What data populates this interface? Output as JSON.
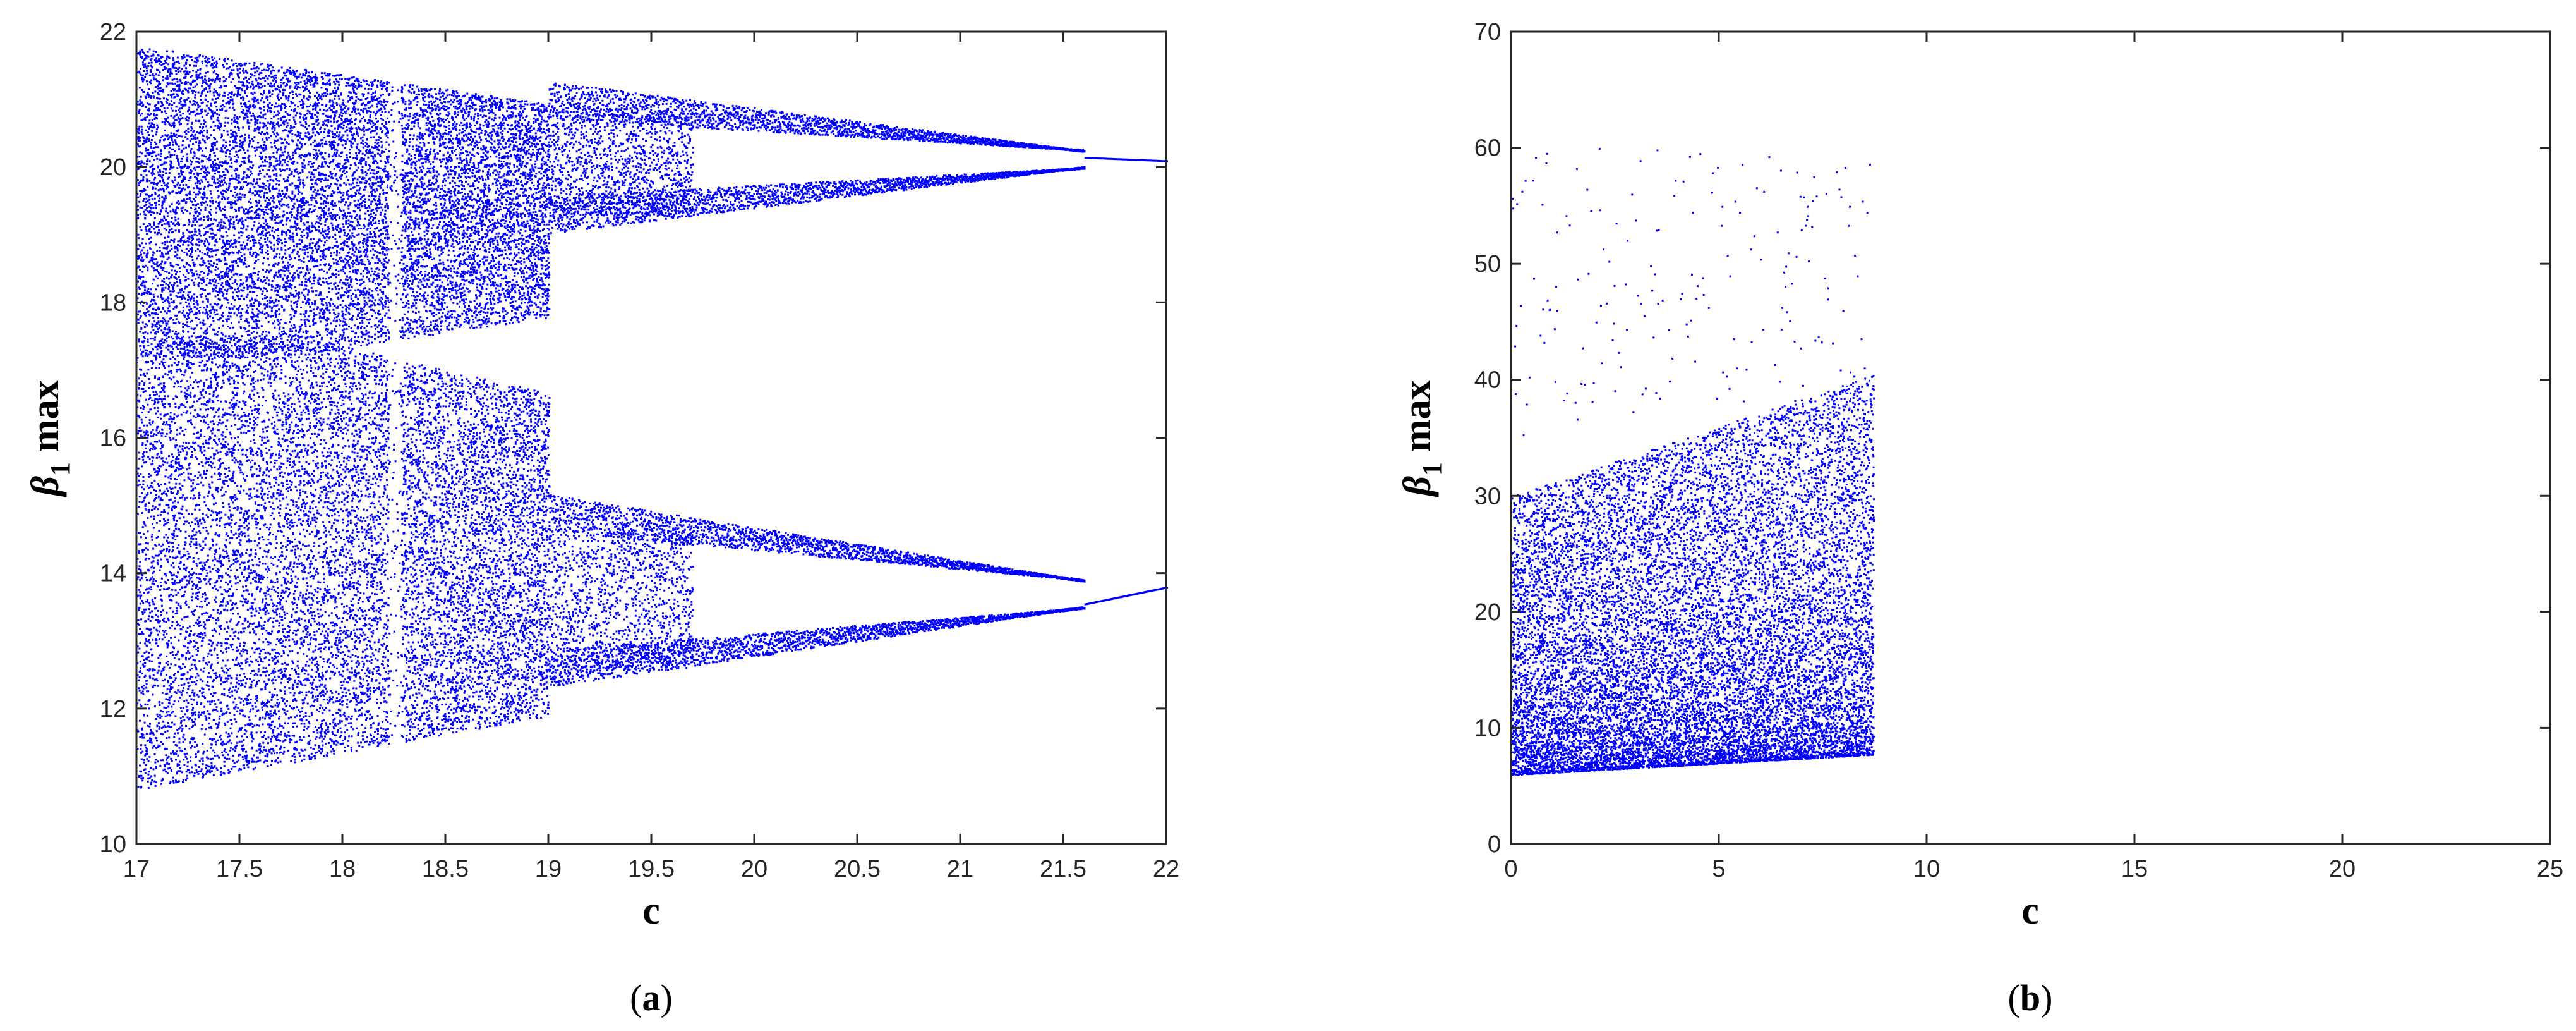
{
  "figure": {
    "panels": [
      {
        "caption_open": "(",
        "caption_letter": "a",
        "caption_close": ")"
      },
      {
        "caption_open": "(",
        "caption_letter": "b",
        "caption_close": ")"
      }
    ]
  },
  "chart_data": [
    {
      "type": "scatter",
      "title": "",
      "xlabel": "c",
      "ylabel_symbol": "β",
      "ylabel_subscript": "1",
      "ylabel_suffix": "max",
      "xlim": [
        17,
        22
      ],
      "ylim": [
        10,
        22
      ],
      "xticks": [
        17,
        17.5,
        18,
        18.5,
        19,
        19.5,
        20,
        20.5,
        21,
        21.5,
        22
      ],
      "yticks": [
        10,
        12,
        14,
        16,
        18,
        20,
        22
      ],
      "marker_color": "#0000ff",
      "grid": false,
      "series": [
        {
          "values_description": "bifurcation diagram",
          "bands": [
            {
              "x": [
                17,
                17.6
              ],
              "lower": [
                10.8,
                17.2
              ],
              "upper": [
                21.8,
                21.8
              ]
            },
            {
              "x": [
                17,
                17.8
              ],
              "lower": [
                10.8,
                10.8
              ],
              "upper": [
                17.5,
                17.5
              ]
            }
          ]
        }
      ]
    },
    {
      "type": "scatter",
      "title": "",
      "xlabel": "c",
      "ylabel_symbol": "β",
      "ylabel_subscript": "1",
      "ylabel_suffix": "max",
      "xlim": [
        0,
        25
      ],
      "ylim": [
        0,
        70
      ],
      "xticks": [
        0,
        5,
        10,
        15,
        20,
        25
      ],
      "yticks": [
        0,
        10,
        20,
        30,
        40,
        50,
        60,
        70
      ],
      "marker_color": "#0000ff",
      "grid": false
    }
  ]
}
